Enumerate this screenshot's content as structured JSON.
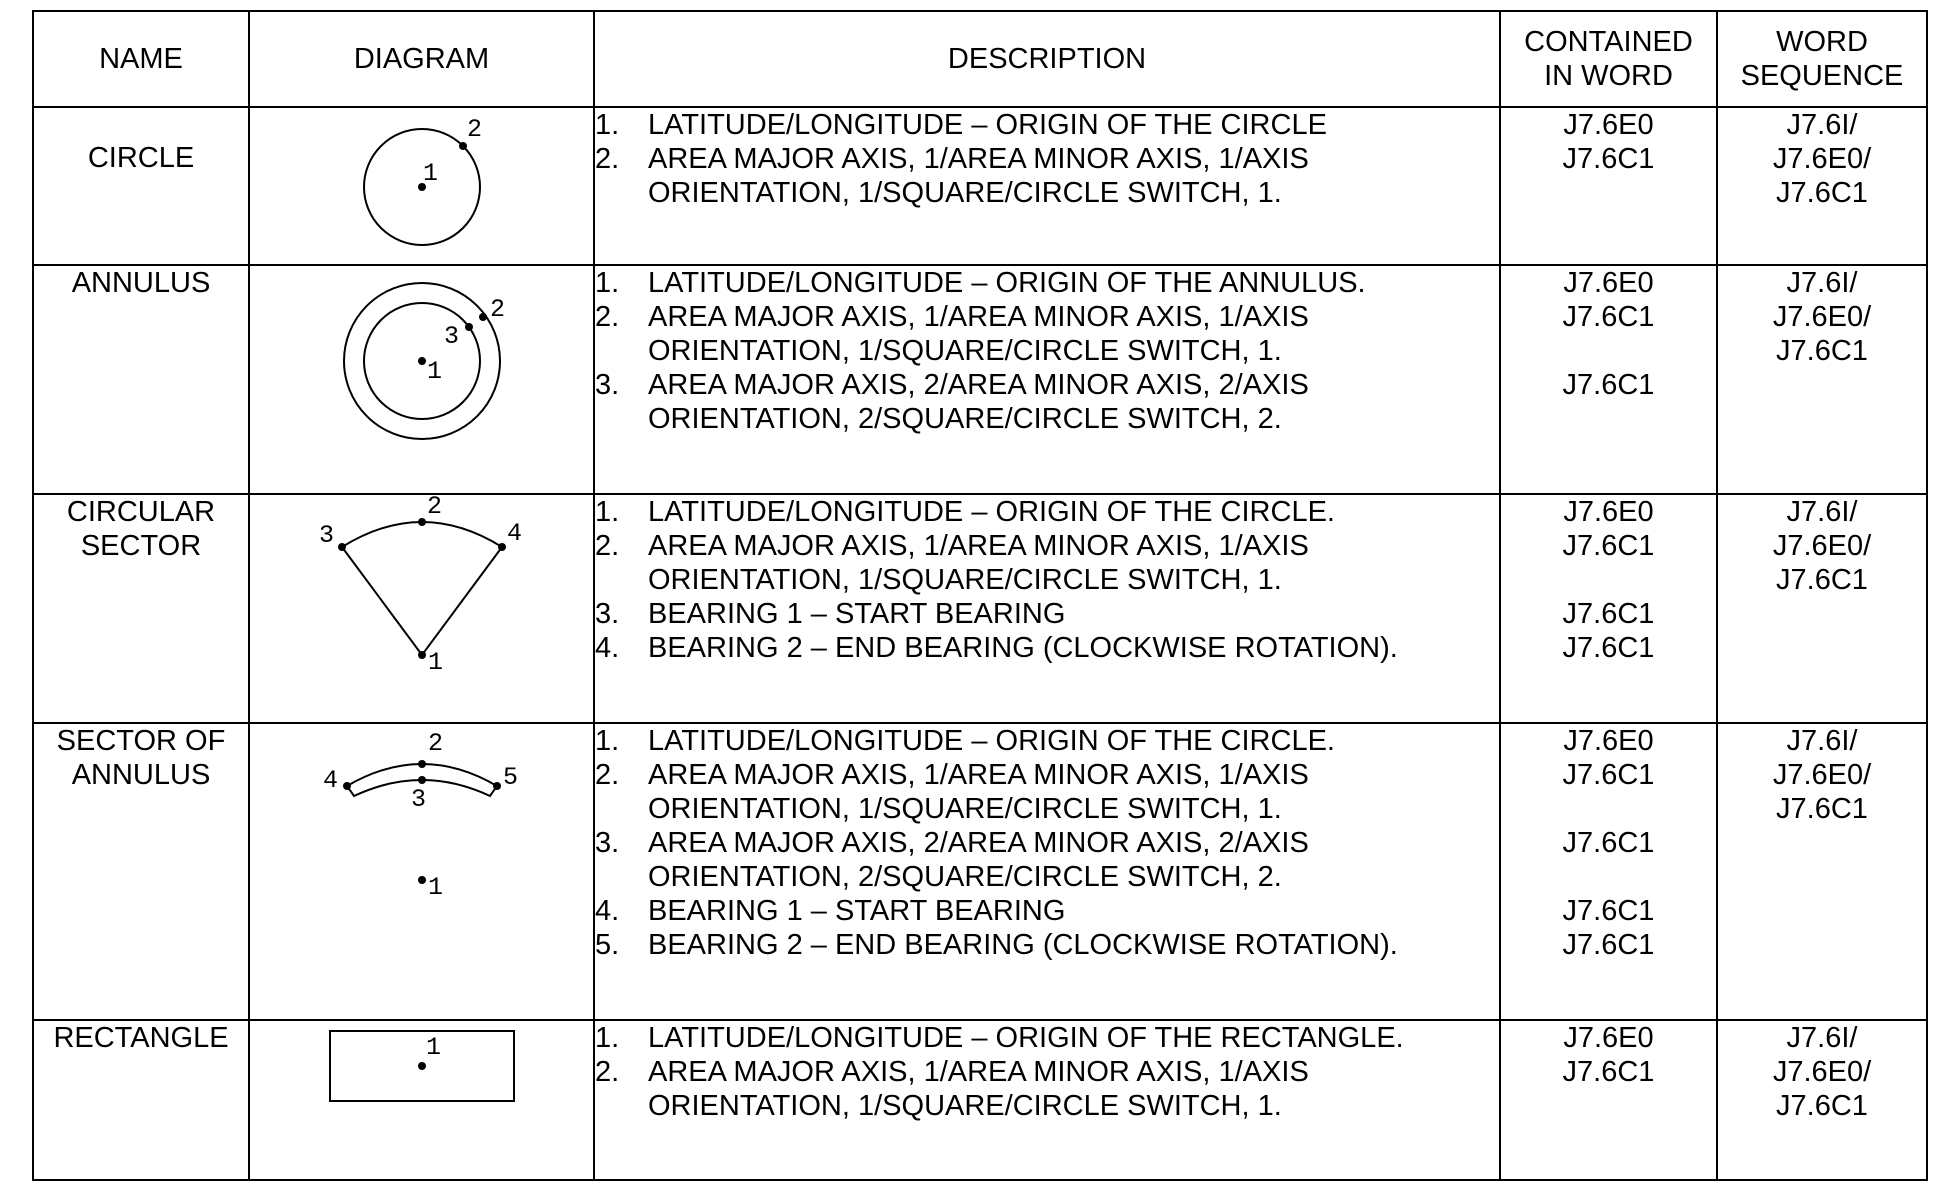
{
  "headers": {
    "name": "NAME",
    "diagram": "DIAGRAM",
    "description": "DESCRIPTION",
    "contained": "CONTAINED\nIN WORD",
    "sequence": "WORD\nSEQUENCE"
  },
  "rows": [
    {
      "name": "CIRCLE",
      "diagram": {
        "points": [
          "1",
          "2"
        ]
      },
      "description": [
        {
          "num": "1.",
          "text": "LATITUDE/LONGITUDE – ORIGIN OF THE CIRCLE"
        },
        {
          "num": "2.",
          "text": "AREA MAJOR AXIS, 1/AREA MINOR AXIS, 1/AXIS ORIENTATION, 1/SQUARE/CIRCLE SWITCH, 1."
        }
      ],
      "contained": [
        "J7.6E0",
        "J7.6C1",
        ""
      ],
      "sequence": [
        "J7.6I/",
        "J7.6E0/",
        "J7.6C1"
      ]
    },
    {
      "name": "ANNULUS",
      "diagram": {
        "points": [
          "1",
          "2",
          "3"
        ]
      },
      "description": [
        {
          "num": "1.",
          "text": "LATITUDE/LONGITUDE – ORIGIN OF THE ANNULUS."
        },
        {
          "num": "2.",
          "text": "AREA MAJOR AXIS, 1/AREA MINOR AXIS, 1/AXIS ORIENTATION, 1/SQUARE/CIRCLE SWITCH, 1."
        },
        {
          "num": "3.",
          "text": "AREA MAJOR AXIS, 2/AREA MINOR AXIS, 2/AXIS ORIENTATION, 2/SQUARE/CIRCLE SWITCH, 2."
        }
      ],
      "contained": [
        "J7.6E0",
        "J7.6C1",
        "",
        "J7.6C1",
        ""
      ],
      "sequence": [
        "J7.6I/",
        "J7.6E0/",
        "J7.6C1"
      ]
    },
    {
      "name": "CIRCULAR\nSECTOR",
      "diagram": {
        "points": [
          "1",
          "2",
          "3",
          "4"
        ]
      },
      "description": [
        {
          "num": "1.",
          "text": "LATITUDE/LONGITUDE – ORIGIN OF THE CIRCLE."
        },
        {
          "num": "2.",
          "text": "AREA MAJOR AXIS, 1/AREA MINOR AXIS, 1/AXIS ORIENTATION, 1/SQUARE/CIRCLE SWITCH, 1."
        },
        {
          "num": "3.",
          "text": "BEARING 1 – START BEARING"
        },
        {
          "num": "4.",
          "text": "BEARING 2 – END BEARING (CLOCKWISE ROTATION)."
        }
      ],
      "contained": [
        "J7.6E0",
        "J7.6C1",
        "",
        "J7.6C1",
        "J7.6C1"
      ],
      "sequence": [
        "J7.6I/",
        "J7.6E0/",
        "J7.6C1"
      ]
    },
    {
      "name": "SECTOR OF\nANNULUS",
      "diagram": {
        "points": [
          "1",
          "2",
          "3",
          "4",
          "5"
        ]
      },
      "description": [
        {
          "num": "1.",
          "text": "LATITUDE/LONGITUDE – ORIGIN OF THE CIRCLE."
        },
        {
          "num": "2.",
          "text": "AREA MAJOR AXIS, 1/AREA MINOR AXIS, 1/AXIS ORIENTATION, 1/SQUARE/CIRCLE SWITCH, 1."
        },
        {
          "num": "3.",
          "text": "AREA MAJOR AXIS, 2/AREA MINOR AXIS, 2/AXIS ORIENTATION, 2/SQUARE/CIRCLE SWITCH, 2."
        },
        {
          "num": "4.",
          "text": "BEARING 1 – START BEARING"
        },
        {
          "num": "5.",
          "text": "BEARING 2 – END BEARING (CLOCKWISE ROTATION)."
        }
      ],
      "contained": [
        "J7.6E0",
        "J7.6C1",
        "",
        "J7.6C1",
        "",
        "J7.6C1",
        "J7.6C1"
      ],
      "sequence": [
        "J7.6I/",
        "J7.6E0/",
        "J7.6C1"
      ]
    },
    {
      "name": "RECTANGLE",
      "diagram": {
        "points": [
          "1"
        ]
      },
      "description": [
        {
          "num": "1.",
          "text": "LATITUDE/LONGITUDE – ORIGIN OF THE RECTANGLE."
        },
        {
          "num": "2.",
          "text": "AREA MAJOR AXIS, 1/AREA MINOR AXIS, 1/AXIS ORIENTATION, 1/SQUARE/CIRCLE SWITCH, 1."
        }
      ],
      "contained": [
        "J7.6E0",
        "J7.6C1",
        ""
      ],
      "sequence": [
        "J7.6I/",
        "J7.6E0/",
        "J7.6C1"
      ]
    }
  ]
}
